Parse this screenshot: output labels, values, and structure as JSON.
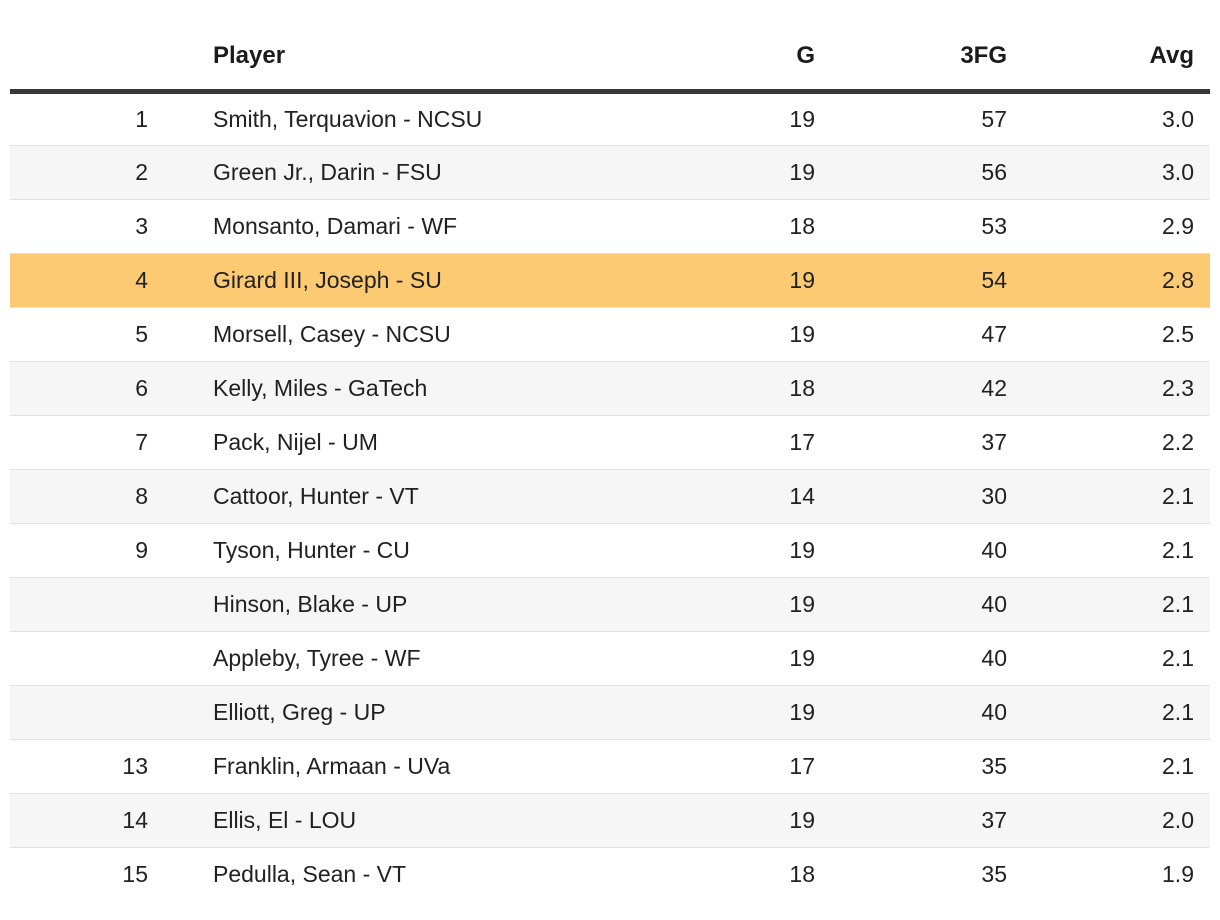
{
  "chart_data": {
    "type": "table",
    "columns": [
      {
        "key": "rank",
        "label": ""
      },
      {
        "key": "player",
        "label": "Player"
      },
      {
        "key": "g",
        "label": "G"
      },
      {
        "key": "fg3",
        "label": "3FG"
      },
      {
        "key": "avg",
        "label": "Avg"
      }
    ],
    "rows": [
      {
        "rank": "1",
        "player": "Smith, Terquavion - NCSU",
        "g": "19",
        "fg3": "57",
        "avg": "3.0",
        "highlighted": false
      },
      {
        "rank": "2",
        "player": "Green Jr., Darin - FSU",
        "g": "19",
        "fg3": "56",
        "avg": "3.0",
        "highlighted": false
      },
      {
        "rank": "3",
        "player": "Monsanto, Damari - WF",
        "g": "18",
        "fg3": "53",
        "avg": "2.9",
        "highlighted": false
      },
      {
        "rank": "4",
        "player": "Girard III, Joseph - SU",
        "g": "19",
        "fg3": "54",
        "avg": "2.8",
        "highlighted": true
      },
      {
        "rank": "5",
        "player": "Morsell, Casey - NCSU",
        "g": "19",
        "fg3": "47",
        "avg": "2.5",
        "highlighted": false
      },
      {
        "rank": "6",
        "player": "Kelly, Miles - GaTech",
        "g": "18",
        "fg3": "42",
        "avg": "2.3",
        "highlighted": false
      },
      {
        "rank": "7",
        "player": "Pack, Nijel - UM",
        "g": "17",
        "fg3": "37",
        "avg": "2.2",
        "highlighted": false
      },
      {
        "rank": "8",
        "player": "Cattoor, Hunter - VT",
        "g": "14",
        "fg3": "30",
        "avg": "2.1",
        "highlighted": false
      },
      {
        "rank": "9",
        "player": "Tyson, Hunter - CU",
        "g": "19",
        "fg3": "40",
        "avg": "2.1",
        "highlighted": false
      },
      {
        "rank": "",
        "player": "Hinson, Blake - UP",
        "g": "19",
        "fg3": "40",
        "avg": "2.1",
        "highlighted": false
      },
      {
        "rank": "",
        "player": "Appleby, Tyree - WF",
        "g": "19",
        "fg3": "40",
        "avg": "2.1",
        "highlighted": false
      },
      {
        "rank": "",
        "player": "Elliott, Greg - UP",
        "g": "19",
        "fg3": "40",
        "avg": "2.1",
        "highlighted": false
      },
      {
        "rank": "13",
        "player": "Franklin, Armaan - UVa",
        "g": "17",
        "fg3": "35",
        "avg": "2.1",
        "highlighted": false
      },
      {
        "rank": "14",
        "player": "Ellis, El - LOU",
        "g": "19",
        "fg3": "37",
        "avg": "2.0",
        "highlighted": false
      },
      {
        "rank": "15",
        "player": "Pedulla, Sean - VT",
        "g": "18",
        "fg3": "35",
        "avg": "1.9",
        "highlighted": false
      }
    ],
    "highlighted_row_index": 3,
    "layout": {
      "stripes": true,
      "numeric_columns_right_aligned": true
    }
  },
  "colors": {
    "highlight_row": "#fdca74",
    "stripe": "#f6f6f6",
    "row_border": "#e2e2e2",
    "header_rule": "#373737",
    "text": "#212121",
    "page_bg": "#ffffff"
  }
}
